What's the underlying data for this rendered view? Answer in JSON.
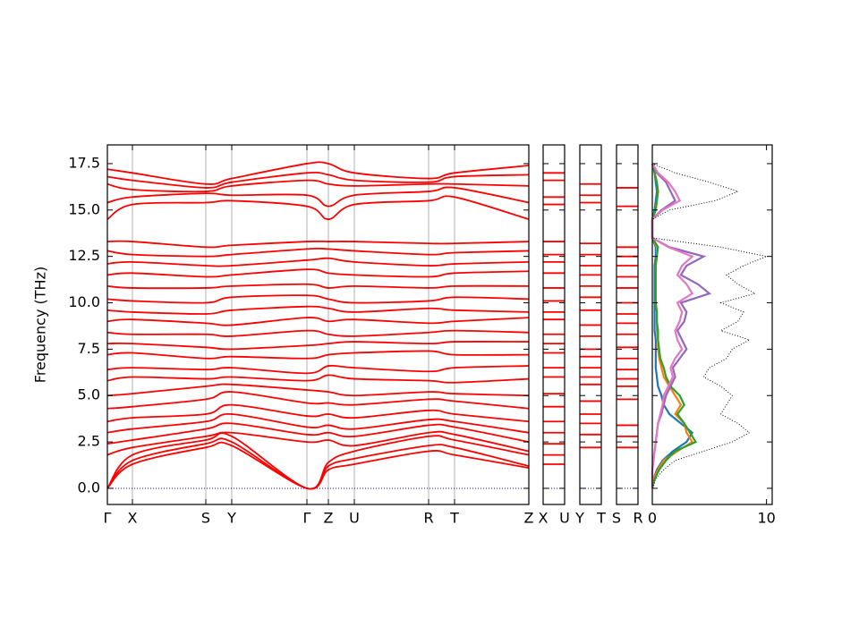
{
  "chart_data": [
    {
      "type": "band",
      "ylabel": "Frequency (THz)",
      "color": "#ff0000",
      "x": [
        0,
        0.28,
        1.1,
        1.39,
        2.23,
        2.47,
        2.76,
        3.59,
        3.88,
        4.71
      ],
      "xlim": [
        0,
        4.71
      ],
      "xticks": [
        {
          "value": 0,
          "label": "Γ"
        },
        {
          "value": 0.28,
          "label": "X"
        },
        {
          "value": 1.1,
          "label": "S"
        },
        {
          "value": 1.39,
          "label": "Y"
        },
        {
          "value": 2.23,
          "label": "Γ"
        },
        {
          "value": 2.47,
          "label": "Z"
        },
        {
          "value": 2.76,
          "label": "U"
        },
        {
          "value": 3.59,
          "label": "R"
        },
        {
          "value": 3.88,
          "label": "T"
        },
        {
          "value": 4.71,
          "label": "Z"
        }
      ],
      "ylim": [
        -0.87,
        18.51
      ],
      "yticks": [
        {
          "value": 0,
          "label": "0.0"
        },
        2.5,
        {
          "value": 5,
          "label": "5.0"
        },
        7.5,
        {
          "value": 10,
          "label": "10.0"
        },
        12.5,
        {
          "value": 15,
          "label": "15.0"
        },
        17.5
      ],
      "series": [
        {
          "values": [
            0,
            1.3,
            2.2,
            2.3,
            0,
            1.0,
            1.3,
            2.0,
            1.8,
            1.1
          ]
        },
        {
          "values": [
            0,
            1.5,
            2.4,
            2.5,
            0,
            1.2,
            1.6,
            2.3,
            2.2,
            1.2
          ]
        },
        {
          "values": [
            0,
            1.8,
            2.6,
            2.8,
            0,
            1.4,
            2.0,
            2.8,
            2.6,
            1.8
          ]
        },
        {
          "values": [
            1.8,
            2.2,
            2.8,
            3.0,
            2.5,
            2.6,
            2.3,
            3.0,
            2.9,
            2.0
          ]
        },
        {
          "values": [
            2.4,
            2.6,
            3.2,
            3.5,
            2.9,
            3.0,
            2.8,
            3.4,
            3.3,
            2.5
          ]
        },
        {
          "values": [
            3.0,
            3.2,
            3.6,
            4.0,
            3.3,
            3.4,
            3.2,
            3.7,
            3.6,
            3.0
          ]
        },
        {
          "values": [
            3.6,
            3.8,
            4.0,
            4.5,
            3.9,
            4.0,
            3.8,
            4.2,
            4.0,
            3.6
          ]
        },
        {
          "values": [
            4.3,
            4.4,
            4.8,
            5.2,
            4.6,
            4.6,
            4.5,
            4.8,
            4.7,
            4.3
          ]
        },
        {
          "values": [
            5.0,
            5.1,
            5.5,
            5.6,
            5.3,
            5.2,
            5.0,
            5.2,
            5.1,
            5.0
          ]
        },
        {
          "values": [
            5.8,
            6.0,
            5.9,
            6.0,
            5.8,
            6.1,
            5.9,
            5.8,
            5.7,
            5.9
          ]
        },
        {
          "values": [
            6.4,
            6.5,
            6.4,
            6.5,
            6.2,
            6.6,
            6.5,
            6.3,
            6.5,
            6.6
          ]
        },
        {
          "values": [
            7.2,
            7.3,
            7.0,
            7.1,
            7.0,
            7.2,
            7.3,
            7.4,
            7.2,
            7.2
          ]
        },
        {
          "values": [
            7.8,
            7.8,
            7.6,
            7.5,
            7.7,
            7.8,
            7.9,
            7.8,
            7.9,
            7.9
          ]
        },
        {
          "values": [
            8.4,
            8.3,
            8.3,
            8.2,
            8.5,
            8.3,
            8.2,
            8.4,
            8.5,
            8.4
          ]
        },
        {
          "values": [
            9.0,
            9.1,
            8.9,
            8.8,
            9.2,
            9.0,
            9.1,
            8.9,
            9.0,
            9.2
          ]
        },
        {
          "values": [
            9.6,
            9.5,
            9.4,
            9.6,
            9.8,
            9.7,
            9.5,
            9.7,
            9.6,
            9.5
          ]
        },
        {
          "values": [
            10.2,
            10.1,
            10.0,
            10.3,
            10.4,
            10.2,
            10.0,
            10.1,
            10.3,
            10.2
          ]
        },
        {
          "values": [
            10.9,
            10.8,
            10.8,
            10.9,
            11.0,
            10.8,
            10.9,
            10.8,
            10.9,
            10.9
          ]
        },
        {
          "values": [
            11.5,
            11.6,
            11.4,
            11.5,
            11.8,
            11.6,
            11.5,
            11.4,
            11.6,
            11.7
          ]
        },
        {
          "values": [
            12.1,
            12.2,
            12.0,
            12.0,
            12.3,
            12.4,
            12.2,
            12.0,
            12.1,
            12.2
          ]
        },
        {
          "values": [
            12.8,
            12.6,
            12.5,
            12.6,
            12.9,
            12.9,
            12.8,
            12.6,
            12.7,
            12.8
          ]
        },
        {
          "values": [
            13.3,
            13.3,
            13.0,
            13.1,
            13.3,
            13.3,
            13.3,
            13.2,
            13.2,
            13.3
          ]
        },
        {
          "values": [
            14.5,
            15.3,
            15.4,
            15.5,
            15.2,
            14.5,
            15.3,
            15.5,
            15.7,
            14.5
          ]
        },
        {
          "values": [
            15.4,
            15.7,
            15.9,
            15.8,
            15.8,
            15.2,
            15.8,
            16.0,
            16.2,
            15.4
          ]
        },
        {
          "values": [
            16.4,
            16.1,
            16.0,
            16.3,
            16.6,
            16.4,
            16.3,
            16.4,
            16.4,
            16.3
          ]
        },
        {
          "values": [
            16.8,
            16.6,
            16.2,
            16.5,
            17.0,
            16.9,
            16.6,
            16.5,
            16.8,
            16.9
          ]
        },
        {
          "values": [
            17.2,
            17.0,
            16.4,
            16.7,
            17.5,
            17.5,
            17.0,
            16.7,
            17.0,
            17.4
          ]
        }
      ]
    },
    {
      "type": "levels",
      "color": "#ff0000",
      "xticks": [
        {
          "value": 0,
          "label": "X"
        },
        {
          "value": 1,
          "label": "U"
        }
      ],
      "values": [
        1.3,
        1.8,
        2.4,
        3.0,
        3.6,
        4.4,
        5.1,
        6.0,
        6.5,
        7.3,
        7.8,
        8.3,
        9.1,
        9.5,
        10.1,
        10.8,
        11.6,
        12.2,
        12.6,
        13.3,
        15.3,
        15.7,
        16.6,
        17.0
      ]
    },
    {
      "type": "levels",
      "color": "#ff0000",
      "xticks": [
        {
          "value": 0,
          "label": "Y"
        },
        {
          "value": 1,
          "label": "T"
        }
      ],
      "values": [
        2.2,
        2.9,
        3.5,
        4.0,
        4.7,
        5.6,
        6.0,
        6.5,
        7.1,
        7.5,
        8.2,
        8.8,
        9.6,
        10.3,
        10.9,
        11.5,
        12.0,
        12.6,
        13.2,
        15.4,
        15.8,
        16.4
      ]
    },
    {
      "type": "levels",
      "color": "#ff0000",
      "xticks": [
        {
          "value": 0,
          "label": "S"
        },
        {
          "value": 1,
          "label": "R"
        }
      ],
      "values": [
        2.2,
        2.8,
        3.4,
        4.8,
        5.5,
        5.9,
        6.4,
        7.0,
        7.6,
        8.3,
        8.9,
        9.4,
        10.0,
        10.8,
        11.4,
        12.0,
        12.5,
        13.0,
        15.2,
        16.2
      ]
    },
    {
      "type": "dos",
      "xlim": [
        0,
        10.5
      ],
      "xticks": [
        0,
        10
      ],
      "frequencies": [
        0,
        0.5,
        1,
        1.5,
        2,
        2.5,
        3,
        3.5,
        4,
        4.5,
        5,
        5.5,
        6,
        6.5,
        7,
        7.5,
        8,
        8.5,
        9,
        9.5,
        10,
        10.5,
        11,
        11.5,
        12,
        12.5,
        13,
        13.5,
        14,
        14.5,
        15,
        15.5,
        16,
        16.5,
        17,
        17.5
      ],
      "series": [
        {
          "color": "#000000",
          "linestyle": "dotted",
          "values": [
            0,
            0.3,
            1.0,
            2.0,
            4.5,
            7.0,
            8.5,
            7.5,
            6.0,
            6.5,
            7.0,
            6.0,
            4.5,
            5.0,
            6.5,
            7.0,
            8.5,
            6.0,
            7.5,
            8.0,
            6.0,
            9.0,
            7.5,
            6.5,
            8.0,
            10.0,
            6.0,
            0,
            0,
            0,
            1.5,
            5.5,
            7.5,
            5.0,
            2.0,
            0
          ]
        },
        {
          "color": "#1f77b4",
          "linestyle": "solid",
          "values": [
            0,
            0.1,
            0.4,
            0.9,
            1.8,
            3.0,
            3.5,
            2.5,
            1.5,
            1.0,
            0.8,
            0.5,
            0.4,
            0.3,
            0.3,
            0.3,
            0.3,
            0.2,
            0.2,
            0.2,
            0.2,
            0.2,
            0.2,
            0.2,
            0.2,
            0.3,
            0.3,
            0,
            0,
            0,
            0.2,
            0.3,
            0.4,
            0.3,
            0.2,
            0
          ]
        },
        {
          "color": "#ff7f0e",
          "linestyle": "solid",
          "values": [
            0,
            0.1,
            0.5,
            1.0,
            2.2,
            3.5,
            3.0,
            2.8,
            2.0,
            2.5,
            2.0,
            1.5,
            1.0,
            0.8,
            0.6,
            0.5,
            0.5,
            0.4,
            0.4,
            0.4,
            0.3,
            0.3,
            0.3,
            0.3,
            0.3,
            0.4,
            0.4,
            0,
            0,
            0,
            0.3,
            0.4,
            0.5,
            0.4,
            0.2,
            0
          ]
        },
        {
          "color": "#2ca02c",
          "linestyle": "solid",
          "values": [
            0,
            0.2,
            0.6,
            1.2,
            2.0,
            3.8,
            3.3,
            2.8,
            2.2,
            2.8,
            2.4,
            1.6,
            1.2,
            1.0,
            0.7,
            0.6,
            0.5,
            0.5,
            0.4,
            0.4,
            0.3,
            0.3,
            0.3,
            0.3,
            0.3,
            0.4,
            0.5,
            0,
            0,
            0,
            0.3,
            0.4,
            0.5,
            0.4,
            0.2,
            0
          ]
        },
        {
          "color": "#9467bd",
          "linestyle": "solid",
          "values": [
            0,
            0,
            0,
            0.1,
            0.2,
            0.3,
            0.4,
            0.5,
            0.8,
            1.0,
            1.2,
            1.6,
            2.0,
            1.8,
            2.4,
            3.0,
            2.6,
            2.2,
            2.8,
            3.0,
            2.5,
            5.0,
            4.0,
            2.5,
            3.0,
            4.5,
            1.5,
            0,
            0,
            0,
            0.8,
            2.0,
            1.6,
            1.2,
            0.4,
            0
          ]
        },
        {
          "color": "#e377c2",
          "linestyle": "solid",
          "values": [
            0,
            0,
            0,
            0.1,
            0.2,
            0.3,
            0.4,
            0.5,
            0.7,
            0.9,
            1.0,
            1.4,
            1.8,
            1.6,
            2.0,
            2.6,
            2.2,
            2.0,
            2.4,
            2.6,
            2.2,
            3.5,
            3.0,
            2.2,
            2.6,
            3.5,
            1.4,
            0,
            0,
            0,
            0.9,
            2.4,
            2.0,
            1.4,
            0.5,
            0
          ]
        }
      ]
    }
  ]
}
